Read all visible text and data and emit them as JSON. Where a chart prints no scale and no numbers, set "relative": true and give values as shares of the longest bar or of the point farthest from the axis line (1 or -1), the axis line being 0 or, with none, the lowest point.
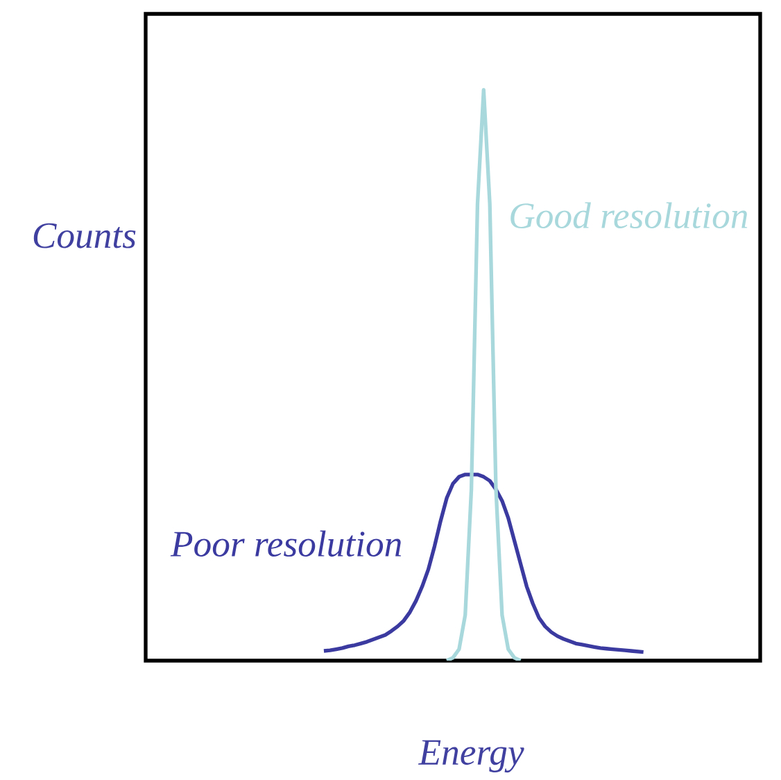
{
  "chart_data": {
    "type": "line",
    "relative": true,
    "xlabel": "Energy",
    "ylabel": "Counts",
    "marker": "none",
    "line_style": "solid",
    "categories": [
      null,
      null,
      null,
      null,
      null,
      null,
      null,
      null,
      null,
      null,
      null,
      null,
      null,
      null,
      null,
      null,
      null,
      null,
      null,
      null,
      null,
      null,
      null,
      null,
      null,
      null,
      null,
      null,
      null,
      null,
      null,
      null,
      null,
      null,
      null,
      null,
      null,
      null,
      null,
      null,
      null,
      null,
      null,
      null,
      null,
      null,
      null,
      null,
      null,
      null,
      null,
      null,
      null,
      null,
      null,
      null,
      null,
      null,
      null,
      null,
      null,
      null,
      null,
      null,
      null,
      null,
      null,
      null,
      null,
      null,
      null,
      null,
      null,
      null,
      null,
      null,
      null,
      null,
      null,
      null,
      null,
      null,
      null,
      null,
      null,
      null,
      null,
      null,
      null,
      null,
      null,
      null,
      null,
      null,
      null,
      null,
      null,
      null,
      null,
      null,
      null
    ],
    "series": [
      {
        "name": "Poor resolution",
        "color": "#3a3aa0",
        "values": [
          null,
          null,
          null,
          null,
          null,
          null,
          null,
          null,
          null,
          null,
          null,
          null,
          null,
          null,
          null,
          null,
          null,
          null,
          null,
          null,
          null,
          null,
          null,
          null,
          null,
          null,
          null,
          null,
          null,
          0.017,
          0.018,
          0.02,
          0.022,
          0.025,
          0.027,
          0.03,
          0.033,
          0.037,
          0.041,
          0.045,
          0.052,
          0.06,
          0.07,
          0.085,
          0.105,
          0.13,
          0.16,
          0.2,
          0.245,
          0.285,
          0.31,
          0.322,
          0.326,
          0.326,
          0.326,
          0.322,
          0.315,
          0.3,
          0.28,
          0.25,
          0.21,
          0.17,
          0.13,
          0.1,
          0.075,
          0.06,
          0.05,
          0.043,
          0.038,
          0.034,
          0.03,
          0.028,
          0.026,
          0.024,
          0.022,
          0.021,
          0.02,
          0.019,
          0.018,
          0.017,
          0.016,
          0.015,
          null,
          null,
          null,
          null,
          null,
          null,
          null,
          null,
          null,
          null,
          null,
          null,
          null,
          null,
          null,
          null,
          null,
          null,
          null
        ]
      },
      {
        "name": "Good resolution",
        "color": "#a8d8dc",
        "values": [
          null,
          null,
          null,
          null,
          null,
          null,
          null,
          null,
          null,
          null,
          null,
          null,
          null,
          null,
          null,
          null,
          null,
          null,
          null,
          null,
          null,
          null,
          null,
          null,
          null,
          null,
          null,
          null,
          null,
          null,
          null,
          null,
          null,
          null,
          null,
          null,
          null,
          null,
          null,
          null,
          null,
          null,
          null,
          null,
          null,
          null,
          null,
          null,
          null,
          0,
          0.005,
          0.02,
          0.08,
          0.3,
          0.8,
          1,
          0.8,
          0.3,
          0.08,
          0.02,
          0.005,
          0,
          null,
          null,
          null,
          null,
          null,
          null,
          null,
          null,
          null,
          null,
          null,
          null,
          null,
          null,
          null,
          null,
          null,
          null,
          null,
          null,
          null,
          null,
          null,
          null,
          null,
          null,
          null,
          null,
          null,
          null,
          null,
          null,
          null,
          null,
          null,
          null,
          null,
          null,
          null
        ]
      }
    ]
  }
}
